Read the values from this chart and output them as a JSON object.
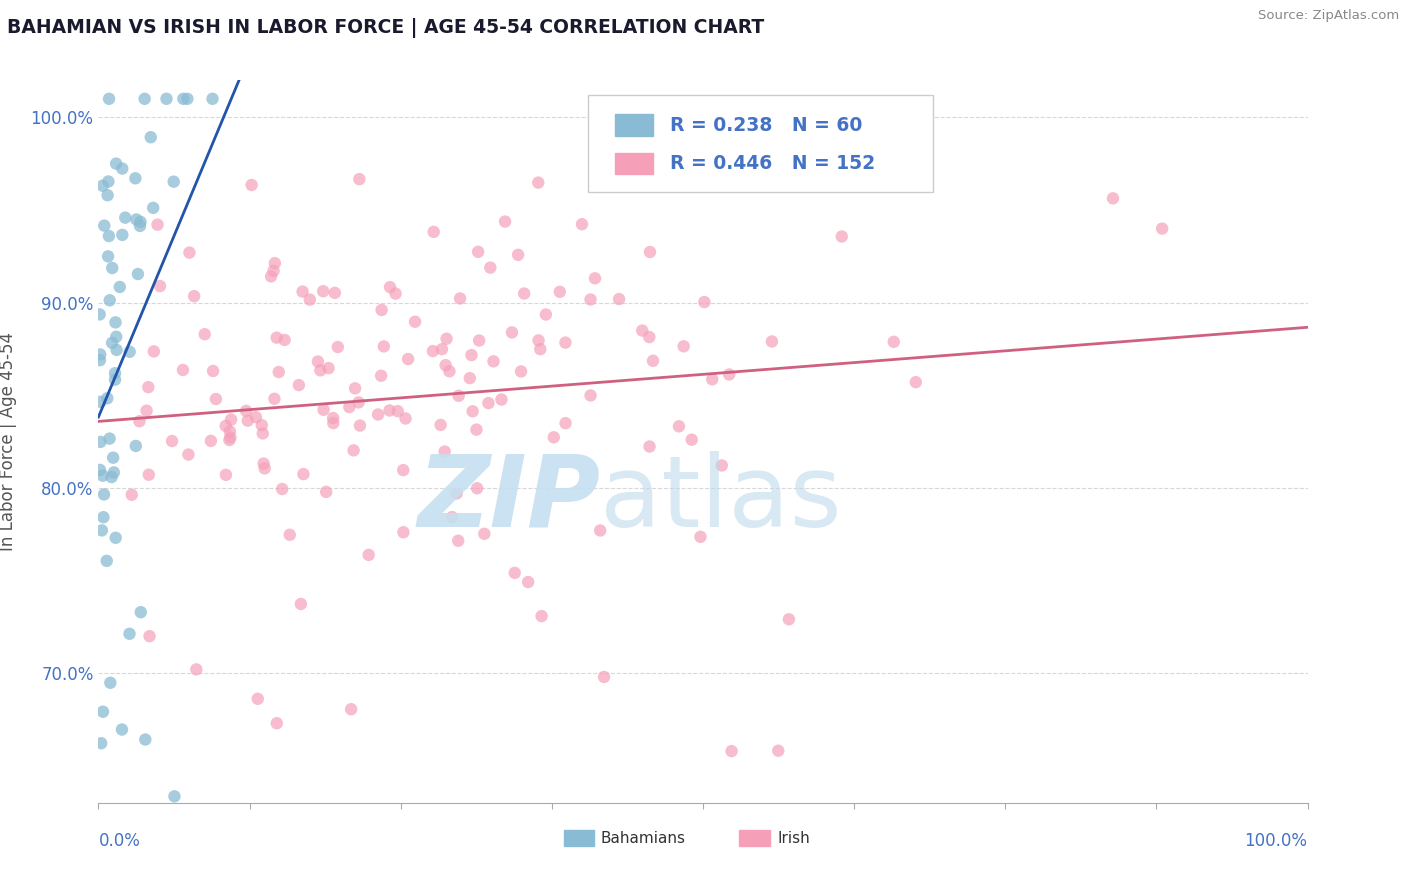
{
  "title": "BAHAMIAN VS IRISH IN LABOR FORCE | AGE 45-54 CORRELATION CHART",
  "source": "Source: ZipAtlas.com",
  "ylabel": "In Labor Force | Age 45-54",
  "legend_bahamian": {
    "R": 0.238,
    "N": 60
  },
  "legend_irish": {
    "R": 0.446,
    "N": 152
  },
  "blue_color": "#8abbd4",
  "pink_color": "#f5a0b8",
  "blue_line_color": "#2255aa",
  "pink_line_color": "#d06080",
  "watermark_zip_color": "#c5dff0",
  "watermark_atlas_color": "#b8d8ec",
  "background_color": "#ffffff",
  "grid_color": "#d8d8d8",
  "title_color": "#1a1a2e",
  "axis_label_color": "#4472c4",
  "legend_text_color": "#4472c4",
  "seed_bah": 77,
  "seed_irish": 42,
  "xlim": [
    0.0,
    1.0
  ],
  "ylim": [
    0.63,
    1.02
  ],
  "ytick_vals": [
    0.7,
    0.8,
    0.9,
    1.0
  ],
  "ytick_labels": [
    "70.0%",
    "80.0%",
    "90.0%",
    "100.0%"
  ]
}
